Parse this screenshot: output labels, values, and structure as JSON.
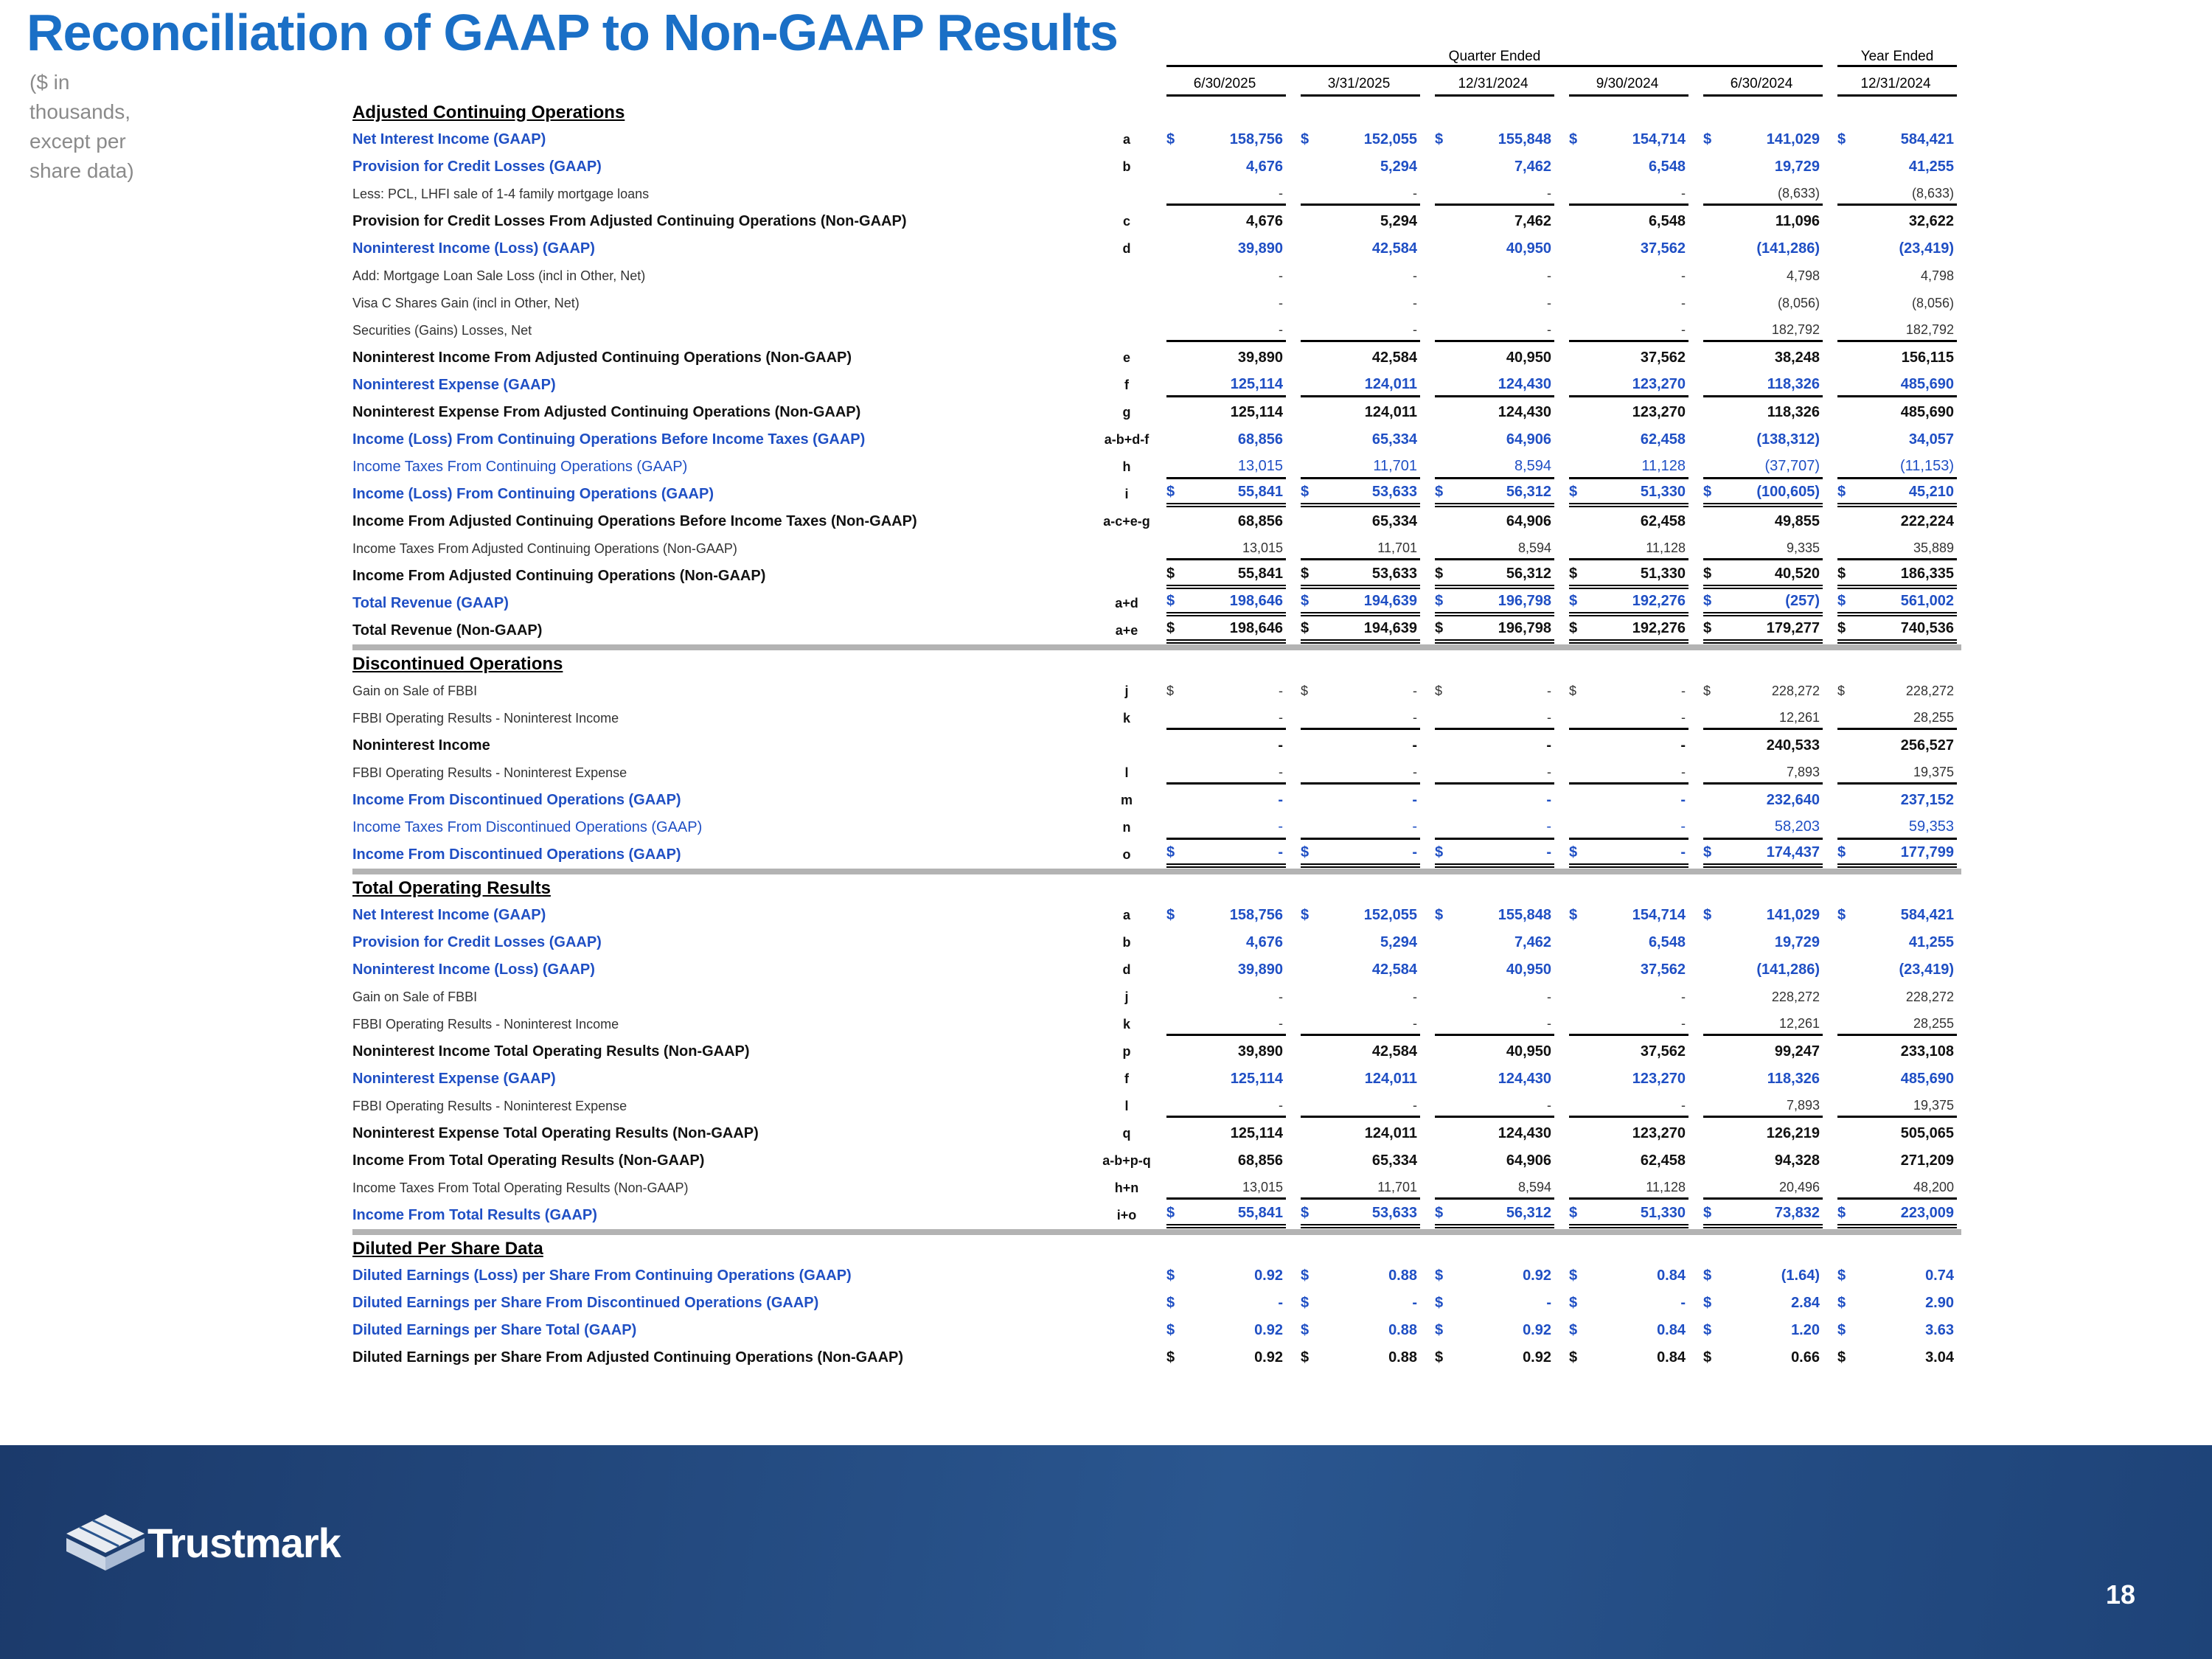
{
  "title": "Reconciliation of GAAP to Non-GAAP Results",
  "note": "($ in thousands, except per share data)",
  "table": {
    "group_headers": [
      "Quarter Ended",
      "Year Ended"
    ],
    "columns": [
      "6/30/2025",
      "3/31/2025",
      "12/31/2024",
      "9/30/2024",
      "6/30/2024",
      "12/31/2024"
    ],
    "sections": [
      {
        "title": "Adjusted Continuing Operations",
        "rows": [
          {
            "label": "Net Interest Income (GAAP)",
            "code": "a",
            "currency": "$",
            "values": [
              "158,756",
              "152,055",
              "155,848",
              "154,714",
              "141,029",
              "584,421"
            ],
            "style": "gaap"
          },
          {
            "label": "Provision for Credit Losses (GAAP)",
            "code": "b",
            "values": [
              "4,676",
              "5,294",
              "7,462",
              "6,548",
              "19,729",
              "41,255"
            ],
            "style": "gaap"
          },
          {
            "label": "Less: PCL, LHFI sale of 1-4 family mortgage loans",
            "values": [
              "-",
              "-",
              "-",
              "-",
              "(8,633)",
              "(8,633)"
            ],
            "style": "detail",
            "rule": "single"
          },
          {
            "label": "Provision for Credit Losses From Adjusted Continuing Operations (Non-GAAP)",
            "code": "c",
            "values": [
              "4,676",
              "5,294",
              "7,462",
              "6,548",
              "11,096",
              "32,622"
            ],
            "style": "total"
          },
          {
            "label": "Noninterest Income (Loss) (GAAP)",
            "code": "d",
            "values": [
              "39,890",
              "42,584",
              "40,950",
              "37,562",
              "(141,286)",
              "(23,419)"
            ],
            "style": "gaap"
          },
          {
            "label": "Add: Mortgage Loan Sale Loss (incl in Other, Net)",
            "values": [
              "-",
              "-",
              "-",
              "-",
              "4,798",
              "4,798"
            ],
            "style": "detail"
          },
          {
            "label": "Visa C Shares Gain (incl in Other, Net)",
            "values": [
              "-",
              "-",
              "-",
              "-",
              "(8,056)",
              "(8,056)"
            ],
            "style": "detail-indent"
          },
          {
            "label": "Securities (Gains) Losses, Net",
            "values": [
              "-",
              "-",
              "-",
              "-",
              "182,792",
              "182,792"
            ],
            "style": "detail-indent",
            "rule": "single"
          },
          {
            "label": "Noninterest Income From Adjusted Continuing Operations (Non-GAAP)",
            "code": "e",
            "values": [
              "39,890",
              "42,584",
              "40,950",
              "37,562",
              "38,248",
              "156,115"
            ],
            "style": "total"
          },
          {
            "label": "Noninterest Expense (GAAP)",
            "code": "f",
            "values": [
              "125,114",
              "124,011",
              "124,430",
              "123,270",
              "118,326",
              "485,690"
            ],
            "style": "gaap",
            "rule": "single"
          },
          {
            "label": "Noninterest Expense From Adjusted Continuing Operations (Non-GAAP)",
            "code": "g",
            "values": [
              "125,114",
              "124,011",
              "124,430",
              "123,270",
              "118,326",
              "485,690"
            ],
            "style": "total"
          },
          {
            "label": "Income (Loss) From Continuing Operations Before Income Taxes (GAAP)",
            "code": "a-b+d-f",
            "values": [
              "68,856",
              "65,334",
              "64,906",
              "62,458",
              "(138,312)",
              "34,057"
            ],
            "style": "gaap"
          },
          {
            "label": "Income Taxes From Continuing Operations (GAAP)",
            "code": "h",
            "values": [
              "13,015",
              "11,701",
              "8,594",
              "11,128",
              "(37,707)",
              "(11,153)"
            ],
            "style": "gaap-detail",
            "rule": "single"
          },
          {
            "label": "Income (Loss) From Continuing Operations (GAAP)",
            "code": "i",
            "currency": "$",
            "values": [
              "55,841",
              "53,633",
              "56,312",
              "51,330",
              "(100,605)",
              "45,210"
            ],
            "style": "gaap",
            "rule": "double"
          },
          {
            "label": "Income From Adjusted Continuing Operations Before Income Taxes (Non-GAAP)",
            "code": "a-c+e-g",
            "values": [
              "68,856",
              "65,334",
              "64,906",
              "62,458",
              "49,855",
              "222,224"
            ],
            "style": "total"
          },
          {
            "label": "Income Taxes From Adjusted Continuing Operations (Non-GAAP)",
            "values": [
              "13,015",
              "11,701",
              "8,594",
              "11,128",
              "9,335",
              "35,889"
            ],
            "style": "detail",
            "rule": "single"
          },
          {
            "label": "Income From Adjusted Continuing Operations (Non-GAAP)",
            "currency": "$",
            "values": [
              "55,841",
              "53,633",
              "56,312",
              "51,330",
              "40,520",
              "186,335"
            ],
            "style": "total",
            "rule": "double"
          },
          {
            "label": "Total Revenue (GAAP)",
            "code": "a+d",
            "currency": "$",
            "values": [
              "198,646",
              "194,639",
              "196,798",
              "192,276",
              "(257)",
              "561,002"
            ],
            "style": "gaap",
            "rule": "double"
          },
          {
            "label": "Total Revenue (Non-GAAP)",
            "code": "a+e",
            "currency": "$",
            "values": [
              "198,646",
              "194,639",
              "196,798",
              "192,276",
              "179,277",
              "740,536"
            ],
            "style": "total",
            "rule": "double"
          }
        ]
      },
      {
        "title": "Discontinued Operations",
        "rows": [
          {
            "label": "Gain on Sale of FBBI",
            "code": "j",
            "currency": "$",
            "values": [
              "-",
              "-",
              "-",
              "-",
              "228,272",
              "228,272"
            ],
            "style": "detail"
          },
          {
            "label": "FBBI Operating Results - Noninterest Income",
            "code": "k",
            "values": [
              "-",
              "-",
              "-",
              "-",
              "12,261",
              "28,255"
            ],
            "style": "detail",
            "rule": "single"
          },
          {
            "label": "Noninterest Income",
            "values": [
              "-",
              "-",
              "-",
              "-",
              "240,533",
              "256,527"
            ],
            "style": "total"
          },
          {
            "label": "FBBI Operating Results - Noninterest Expense",
            "code": "l",
            "values": [
              "-",
              "-",
              "-",
              "-",
              "7,893",
              "19,375"
            ],
            "style": "detail",
            "rule": "single"
          },
          {
            "label": "Income From Discontinued Operations (GAAP)",
            "code": "m",
            "values": [
              "-",
              "-",
              "-",
              "-",
              "232,640",
              "237,152"
            ],
            "style": "gaap"
          },
          {
            "label": "Income Taxes From Discontinued Operations (GAAP)",
            "code": "n",
            "values": [
              "-",
              "-",
              "-",
              "-",
              "58,203",
              "59,353"
            ],
            "style": "gaap-detail",
            "rule": "single"
          },
          {
            "label": "Income From Discontinued Operations (GAAP)",
            "code": "o",
            "currency": "$",
            "values": [
              "-",
              "-",
              "-",
              "-",
              "174,437",
              "177,799"
            ],
            "style": "gaap",
            "rule": "double"
          }
        ]
      },
      {
        "title": "Total Operating Results",
        "rows": [
          {
            "label": "Net Interest Income (GAAP)",
            "code": "a",
            "currency": "$",
            "values": [
              "158,756",
              "152,055",
              "155,848",
              "154,714",
              "141,029",
              "584,421"
            ],
            "style": "gaap"
          },
          {
            "label": "Provision for Credit Losses (GAAP)",
            "code": "b",
            "values": [
              "4,676",
              "5,294",
              "7,462",
              "6,548",
              "19,729",
              "41,255"
            ],
            "style": "gaap"
          },
          {
            "label": "Noninterest Income (Loss) (GAAP)",
            "code": "d",
            "values": [
              "39,890",
              "42,584",
              "40,950",
              "37,562",
              "(141,286)",
              "(23,419)"
            ],
            "style": "gaap"
          },
          {
            "label": "Gain on Sale of FBBI",
            "code": "j",
            "values": [
              "-",
              "-",
              "-",
              "-",
              "228,272",
              "228,272"
            ],
            "style": "detail-indent"
          },
          {
            "label": "FBBI Operating Results - Noninterest Income",
            "code": "k",
            "values": [
              "-",
              "-",
              "-",
              "-",
              "12,261",
              "28,255"
            ],
            "style": "detail-indent",
            "rule": "single"
          },
          {
            "label": "Noninterest Income Total Operating Results (Non-GAAP)",
            "code": "p",
            "values": [
              "39,890",
              "42,584",
              "40,950",
              "37,562",
              "99,247",
              "233,108"
            ],
            "style": "total"
          },
          {
            "label": "Noninterest Expense (GAAP)",
            "code": "f",
            "values": [
              "125,114",
              "124,011",
              "124,430",
              "123,270",
              "118,326",
              "485,690"
            ],
            "style": "gaap"
          },
          {
            "label": "FBBI Operating Results - Noninterest Expense",
            "code": "l",
            "values": [
              "-",
              "-",
              "-",
              "-",
              "7,893",
              "19,375"
            ],
            "style": "detail-indent",
            "rule": "single"
          },
          {
            "label": "Noninterest Expense Total Operating Results (Non-GAAP)",
            "code": "q",
            "values": [
              "125,114",
              "124,011",
              "124,430",
              "123,270",
              "126,219",
              "505,065"
            ],
            "style": "total"
          },
          {
            "label": "Income From Total Operating Results (Non-GAAP)",
            "code": "a-b+p-q",
            "values": [
              "68,856",
              "65,334",
              "64,906",
              "62,458",
              "94,328",
              "271,209"
            ],
            "style": "total"
          },
          {
            "label": "Income Taxes From Total Operating Results (Non-GAAP)",
            "code": "h+n",
            "values": [
              "13,015",
              "11,701",
              "8,594",
              "11,128",
              "20,496",
              "48,200"
            ],
            "style": "detail",
            "rule": "single"
          },
          {
            "label": "Income From Total Results (GAAP)",
            "code": "i+o",
            "currency": "$",
            "values": [
              "55,841",
              "53,633",
              "56,312",
              "51,330",
              "73,832",
              "223,009"
            ],
            "style": "gaap",
            "rule": "double"
          }
        ]
      },
      {
        "title": "Diluted Per Share Data",
        "rows": [
          {
            "label": "Diluted Earnings (Loss) per Share From Continuing Operations (GAAP)",
            "currency": "$",
            "values": [
              "0.92",
              "0.88",
              "0.92",
              "0.84",
              "(1.64)",
              "0.74"
            ],
            "style": "gaap"
          },
          {
            "label": "Diluted Earnings per Share From Discontinued Operations (GAAP)",
            "currency": "$",
            "values": [
              "-",
              "-",
              "-",
              "-",
              "2.84",
              "2.90"
            ],
            "style": "gaap"
          },
          {
            "label": "Diluted Earnings per Share Total (GAAP)",
            "currency": "$",
            "values": [
              "0.92",
              "0.88",
              "0.92",
              "0.84",
              "1.20",
              "3.63"
            ],
            "style": "gaap"
          },
          {
            "label": "Diluted Earnings per Share From Adjusted Continuing Operations (Non-GAAP)",
            "currency": "$",
            "values": [
              "0.92",
              "0.88",
              "0.92",
              "0.84",
              "0.66",
              "3.04"
            ],
            "style": "total"
          }
        ]
      }
    ]
  },
  "footer": {
    "brand": "Trustmark",
    "page": "18"
  }
}
